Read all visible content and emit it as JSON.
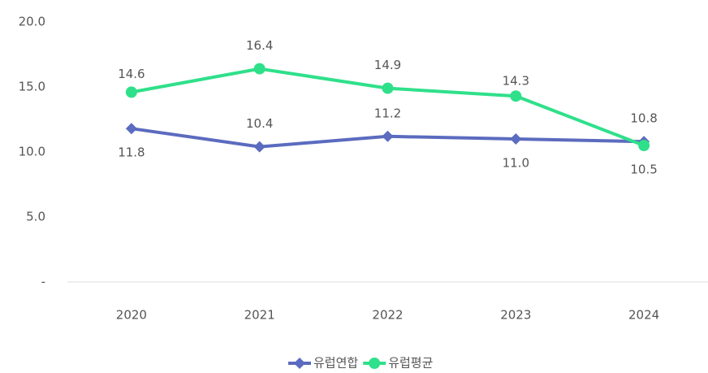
{
  "chart_data": {
    "type": "line",
    "categories": [
      "2020",
      "2021",
      "2022",
      "2023",
      "2024"
    ],
    "series": [
      {
        "name": "유럽연합",
        "color": "#5b6bbf",
        "values": [
          11.8,
          10.4,
          11.2,
          11.0,
          10.8
        ],
        "value_labels": [
          "11.8",
          "10.4",
          "11.2",
          "11.0",
          "10.8"
        ]
      },
      {
        "name": "유럽평균",
        "color": "#2fe08a",
        "values": [
          14.6,
          16.4,
          14.9,
          14.3,
          10.5
        ],
        "value_labels": [
          "14.6",
          "16.4",
          "14.9",
          "14.3",
          "10.5"
        ]
      }
    ],
    "ylim": [
      0,
      20
    ],
    "yticks": [
      {
        "value": 0,
        "label": "-"
      },
      {
        "value": 5,
        "label": "5.0"
      },
      {
        "value": 10,
        "label": "10.0"
      },
      {
        "value": 15,
        "label": "15.0"
      },
      {
        "value": 20,
        "label": "20.0"
      }
    ],
    "legend": "bottom"
  }
}
